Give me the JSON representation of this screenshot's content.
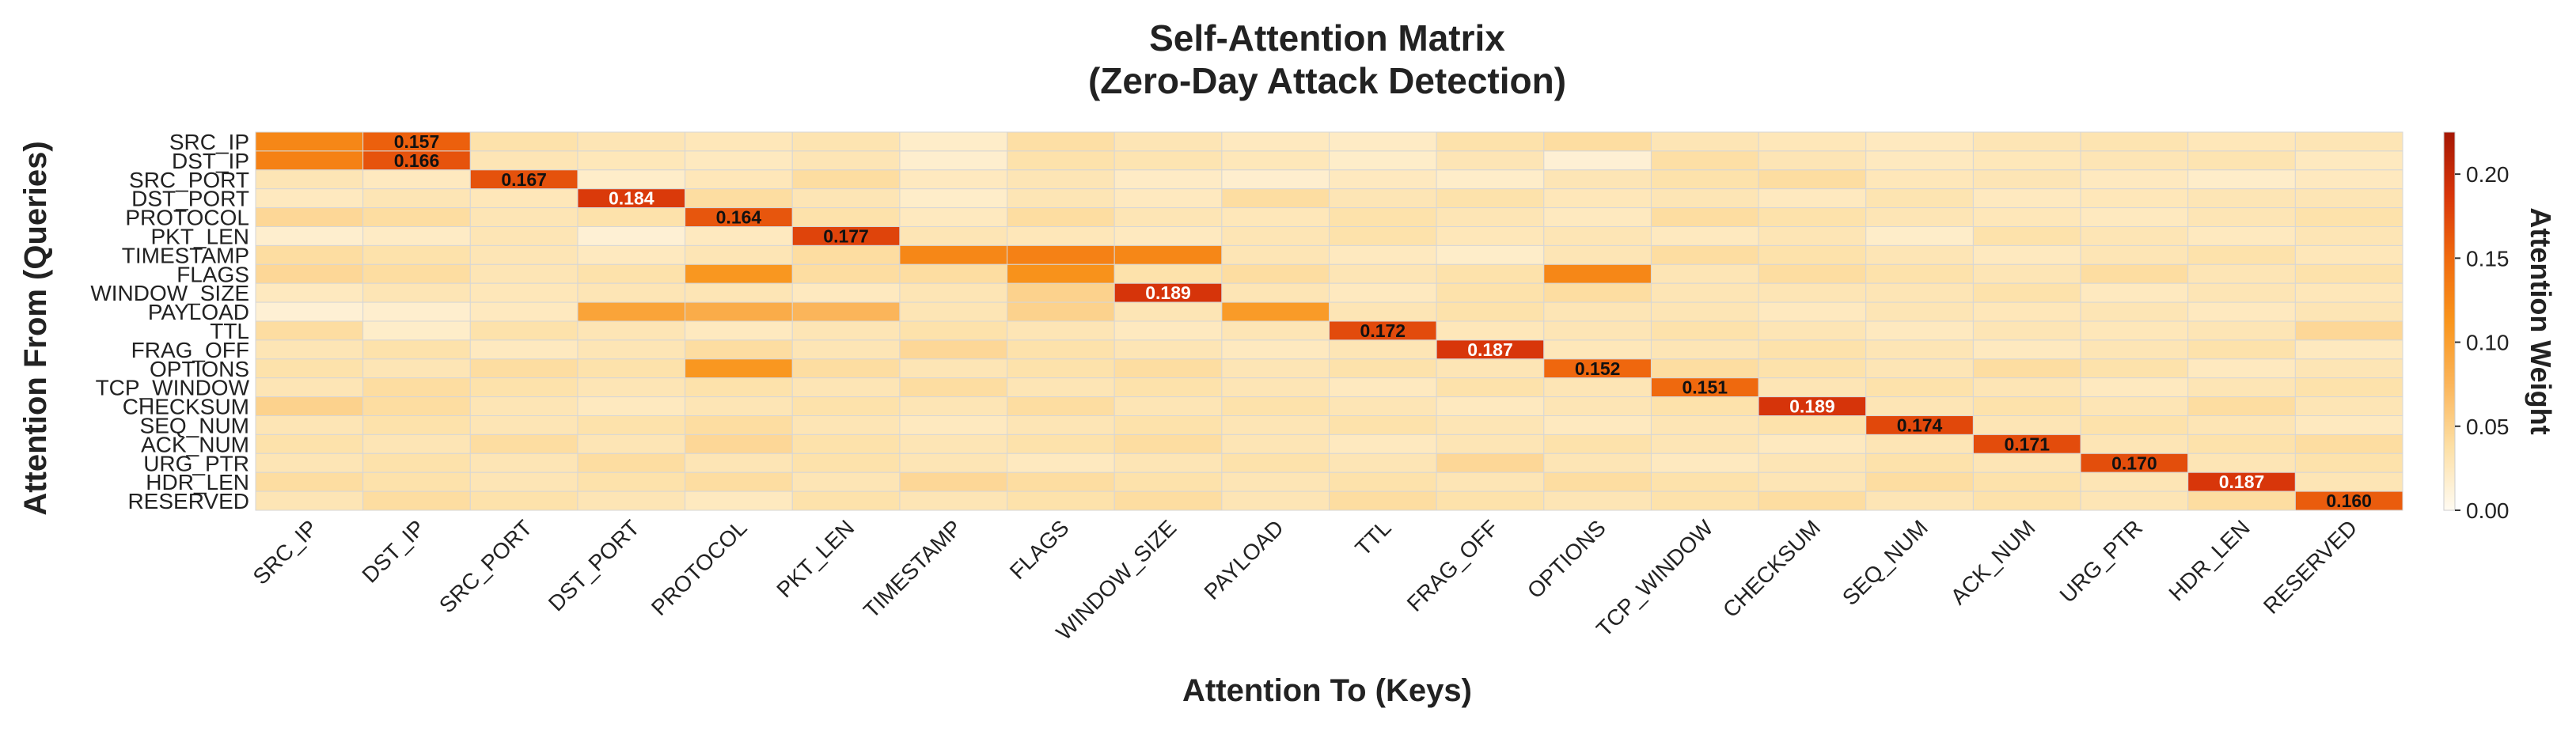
{
  "chart_data": {
    "type": "heatmap",
    "title_lines": [
      "Self-Attention Matrix",
      "(Zero-Day Attack Detection)"
    ],
    "xlabel": "Attention To (Keys)",
    "ylabel": "Attention From (Queries)",
    "colorbar_label": "Attention Weight",
    "colorbar_range": [
      0.0,
      0.225
    ],
    "colorbar_ticks": [
      "0.00",
      "0.05",
      "0.10",
      "0.15",
      "0.20"
    ],
    "colorbar_tick_values": [
      0.0,
      0.05,
      0.1,
      0.15,
      0.2
    ],
    "colormap": [
      "#fffbf2",
      "#fde0a6",
      "#fbb55a",
      "#f9951c",
      "#f06a0e",
      "#d8350a",
      "#a51704"
    ],
    "row_labels": [
      "SRC_IP",
      "DST_IP",
      "SRC_PORT",
      "DST_PORT",
      "PROTOCOL",
      "PKT_LEN",
      "TIMESTAMP",
      "FLAGS",
      "WINDOW_SIZE",
      "PAYLOAD",
      "TTL",
      "FRAG_OFF",
      "OPTIONS",
      "TCP_WINDOW",
      "CHECKSUM",
      "SEQ_NUM",
      "ACK_NUM",
      "URG_PTR",
      "HDR_LEN",
      "RESERVED"
    ],
    "col_labels": [
      "SRC_IP",
      "DST_IP",
      "SRC_PORT",
      "DST_PORT",
      "PROTOCOL",
      "PKT_LEN",
      "TIMESTAMP",
      "FLAGS",
      "WINDOW_SIZE",
      "PAYLOAD",
      "TTL",
      "FRAG_OFF",
      "OPTIONS",
      "TCP_WINDOW",
      "CHECKSUM",
      "SEQ_NUM",
      "ACK_NUM",
      "URG_PTR",
      "HDR_LEN",
      "RESERVED"
    ],
    "values": [
      [
        0.125,
        0.157,
        0.035,
        0.03,
        0.028,
        0.032,
        0.02,
        0.038,
        0.03,
        0.025,
        0.022,
        0.035,
        0.04,
        0.03,
        0.028,
        0.025,
        0.03,
        0.032,
        0.028,
        0.03
      ],
      [
        0.13,
        0.166,
        0.03,
        0.028,
        0.025,
        0.03,
        0.018,
        0.035,
        0.032,
        0.028,
        0.02,
        0.03,
        0.015,
        0.038,
        0.03,
        0.025,
        0.028,
        0.03,
        0.032,
        0.025
      ],
      [
        0.03,
        0.025,
        0.167,
        0.02,
        0.028,
        0.04,
        0.025,
        0.03,
        0.022,
        0.018,
        0.025,
        0.02,
        0.03,
        0.035,
        0.04,
        0.028,
        0.03,
        0.025,
        0.02,
        0.025
      ],
      [
        0.025,
        0.03,
        0.028,
        0.184,
        0.04,
        0.03,
        0.02,
        0.03,
        0.025,
        0.04,
        0.03,
        0.035,
        0.028,
        0.03,
        0.025,
        0.032,
        0.025,
        0.028,
        0.03,
        0.03
      ],
      [
        0.045,
        0.04,
        0.03,
        0.035,
        0.164,
        0.035,
        0.025,
        0.04,
        0.03,
        0.028,
        0.035,
        0.03,
        0.025,
        0.04,
        0.035,
        0.03,
        0.028,
        0.025,
        0.03,
        0.035
      ],
      [
        0.018,
        0.022,
        0.03,
        0.015,
        0.025,
        0.177,
        0.03,
        0.028,
        0.025,
        0.03,
        0.035,
        0.028,
        0.03,
        0.025,
        0.03,
        0.02,
        0.035,
        0.03,
        0.025,
        0.03
      ],
      [
        0.04,
        0.035,
        0.03,
        0.025,
        0.03,
        0.04,
        0.125,
        0.13,
        0.125,
        0.03,
        0.025,
        0.02,
        0.03,
        0.04,
        0.035,
        0.03,
        0.025,
        0.03,
        0.035,
        0.028
      ],
      [
        0.045,
        0.04,
        0.03,
        0.035,
        0.11,
        0.04,
        0.04,
        0.115,
        0.035,
        0.04,
        0.03,
        0.035,
        0.125,
        0.03,
        0.04,
        0.035,
        0.03,
        0.04,
        0.03,
        0.035
      ],
      [
        0.025,
        0.03,
        0.028,
        0.03,
        0.03,
        0.025,
        0.03,
        0.05,
        0.189,
        0.03,
        0.025,
        0.035,
        0.04,
        0.03,
        0.03,
        0.03,
        0.035,
        0.025,
        0.03,
        0.028
      ],
      [
        0.015,
        0.018,
        0.025,
        0.095,
        0.085,
        0.075,
        0.03,
        0.05,
        0.03,
        0.105,
        0.03,
        0.035,
        0.03,
        0.03,
        0.025,
        0.03,
        0.028,
        0.03,
        0.025,
        0.03
      ],
      [
        0.04,
        0.02,
        0.035,
        0.03,
        0.025,
        0.03,
        0.035,
        0.03,
        0.025,
        0.03,
        0.172,
        0.028,
        0.03,
        0.035,
        0.03,
        0.025,
        0.03,
        0.028,
        0.03,
        0.045
      ],
      [
        0.03,
        0.035,
        0.025,
        0.03,
        0.04,
        0.03,
        0.045,
        0.035,
        0.03,
        0.025,
        0.03,
        0.187,
        0.028,
        0.03,
        0.035,
        0.03,
        0.025,
        0.03,
        0.035,
        0.025
      ],
      [
        0.035,
        0.03,
        0.04,
        0.035,
        0.11,
        0.04,
        0.03,
        0.035,
        0.04,
        0.03,
        0.035,
        0.03,
        0.152,
        0.04,
        0.035,
        0.03,
        0.04,
        0.035,
        0.025,
        0.03
      ],
      [
        0.03,
        0.04,
        0.035,
        0.03,
        0.035,
        0.03,
        0.04,
        0.03,
        0.035,
        0.03,
        0.025,
        0.035,
        0.03,
        0.151,
        0.03,
        0.035,
        0.03,
        0.025,
        0.03,
        0.035
      ],
      [
        0.05,
        0.04,
        0.03,
        0.025,
        0.03,
        0.035,
        0.03,
        0.04,
        0.03,
        0.035,
        0.03,
        0.025,
        0.03,
        0.035,
        0.189,
        0.03,
        0.035,
        0.03,
        0.04,
        0.03
      ],
      [
        0.03,
        0.035,
        0.03,
        0.035,
        0.04,
        0.03,
        0.025,
        0.03,
        0.035,
        0.03,
        0.035,
        0.03,
        0.025,
        0.03,
        0.035,
        0.174,
        0.03,
        0.035,
        0.03,
        0.025
      ],
      [
        0.035,
        0.03,
        0.04,
        0.03,
        0.045,
        0.035,
        0.03,
        0.035,
        0.04,
        0.03,
        0.025,
        0.03,
        0.035,
        0.03,
        0.025,
        0.03,
        0.171,
        0.03,
        0.035,
        0.04
      ],
      [
        0.03,
        0.035,
        0.03,
        0.04,
        0.03,
        0.035,
        0.03,
        0.025,
        0.03,
        0.035,
        0.03,
        0.045,
        0.03,
        0.025,
        0.03,
        0.035,
        0.03,
        0.17,
        0.03,
        0.035
      ],
      [
        0.04,
        0.035,
        0.03,
        0.035,
        0.04,
        0.03,
        0.045,
        0.04,
        0.035,
        0.03,
        0.035,
        0.03,
        0.04,
        0.035,
        0.03,
        0.04,
        0.035,
        0.03,
        0.187,
        0.03
      ],
      [
        0.03,
        0.04,
        0.035,
        0.03,
        0.025,
        0.035,
        0.03,
        0.035,
        0.04,
        0.03,
        0.04,
        0.035,
        0.03,
        0.035,
        0.04,
        0.03,
        0.035,
        0.03,
        0.04,
        0.16
      ]
    ],
    "annotations": [
      {
        "row": 0,
        "col": 1,
        "text": "0.157"
      },
      {
        "row": 1,
        "col": 1,
        "text": "0.166"
      },
      {
        "row": 2,
        "col": 2,
        "text": "0.167"
      },
      {
        "row": 3,
        "col": 3,
        "text": "0.184"
      },
      {
        "row": 4,
        "col": 4,
        "text": "0.164"
      },
      {
        "row": 5,
        "col": 5,
        "text": "0.177"
      },
      {
        "row": 8,
        "col": 8,
        "text": "0.189"
      },
      {
        "row": 10,
        "col": 10,
        "text": "0.172"
      },
      {
        "row": 11,
        "col": 11,
        "text": "0.187"
      },
      {
        "row": 12,
        "col": 12,
        "text": "0.152"
      },
      {
        "row": 13,
        "col": 13,
        "text": "0.151"
      },
      {
        "row": 14,
        "col": 14,
        "text": "0.189"
      },
      {
        "row": 15,
        "col": 15,
        "text": "0.174"
      },
      {
        "row": 16,
        "col": 16,
        "text": "0.171"
      },
      {
        "row": 17,
        "col": 17,
        "text": "0.170"
      },
      {
        "row": 18,
        "col": 18,
        "text": "0.187"
      },
      {
        "row": 19,
        "col": 19,
        "text": "0.160"
      }
    ]
  }
}
